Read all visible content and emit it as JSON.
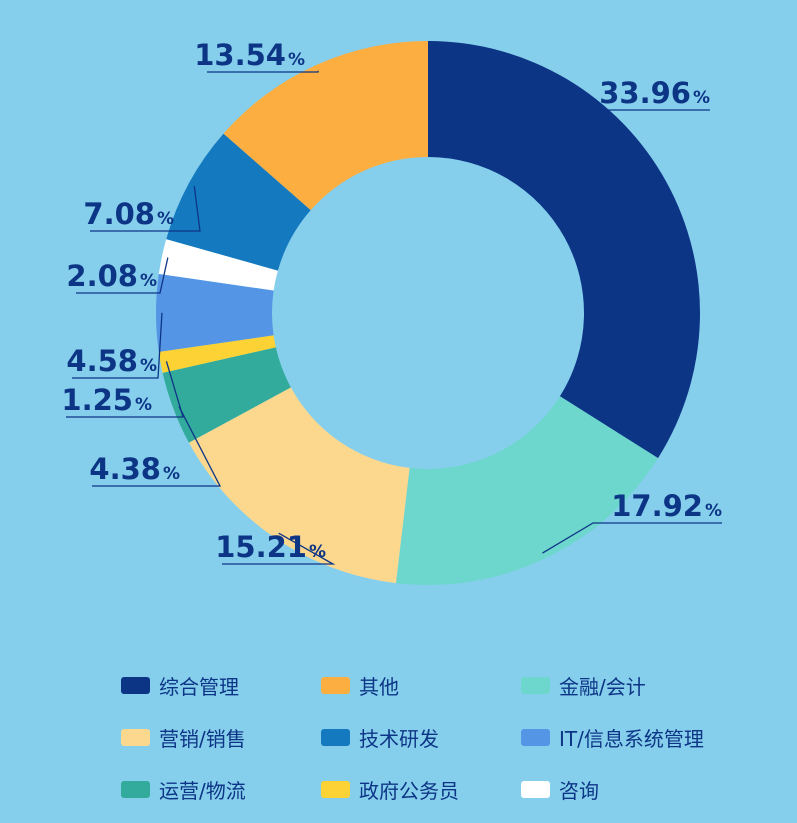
{
  "chart_data": {
    "type": "pie",
    "categories": [
      "综合管理",
      "金融/会计",
      "营销/销售",
      "运营/物流",
      "政府公务员",
      "IT/信息系统管理",
      "咨询",
      "技术研发",
      "其他"
    ],
    "values": [
      33.96,
      17.92,
      15.21,
      4.38,
      1.25,
      4.58,
      2.08,
      7.08,
      13.54
    ],
    "value_labels": [
      "33.96",
      "17.92",
      "15.21",
      "4.38",
      "1.25",
      "4.58",
      "2.08",
      "7.08",
      "13.54"
    ],
    "unit": "%",
    "colors": [
      "#0d3586",
      "#6dd6cd",
      "#fcd88f",
      "#33ab9c",
      "#fcd234",
      "#5595e6",
      "#ffffff",
      "#1479bf",
      "#fdae40"
    ],
    "donut": true,
    "legend_position": "bottom",
    "legend": [
      {
        "label": "综合管理",
        "color": "#0d3586"
      },
      {
        "label": "其他",
        "color": "#fdae40"
      },
      {
        "label": "金融/会计",
        "color": "#6dd6cd"
      },
      {
        "label": "营销/销售",
        "color": "#fcd88f"
      },
      {
        "label": "技术研发",
        "color": "#1479bf"
      },
      {
        "label": "IT/信息系统管理",
        "color": "#5595e6"
      },
      {
        "label": "运营/物流",
        "color": "#33ab9c"
      },
      {
        "label": "政府公务员",
        "color": "#fcd234"
      },
      {
        "label": "咨询",
        "color": "#ffffff"
      }
    ]
  }
}
